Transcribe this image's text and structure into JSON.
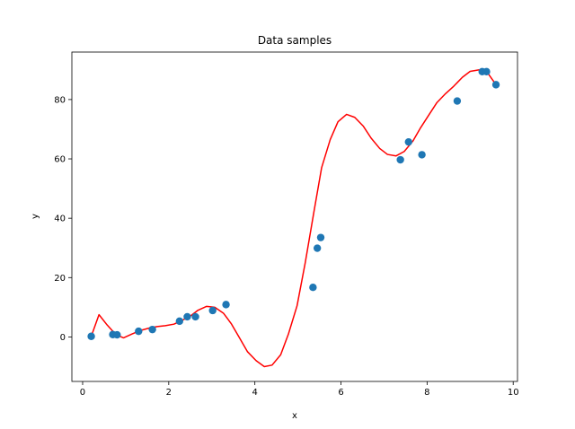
{
  "chart_data": {
    "type": "scatter",
    "title": "Data samples",
    "xlabel": "x",
    "ylabel": "y",
    "xlim": [
      -0.25,
      10.1
    ],
    "ylim": [
      -15,
      96
    ],
    "xticks": [
      0,
      2,
      4,
      6,
      8,
      10
    ],
    "yticks": [
      0,
      20,
      40,
      60,
      80
    ],
    "grid": false,
    "colors": {
      "points": "#1f77b4",
      "line": "#ff0000"
    },
    "series": [
      {
        "type": "scatter",
        "x": [
          0.2,
          0.7,
          0.8,
          1.3,
          1.62,
          2.25,
          2.43,
          2.62,
          3.02,
          3.33,
          5.35,
          5.45,
          5.53,
          7.38,
          7.57,
          7.88,
          8.7,
          9.28,
          9.38,
          9.6
        ],
        "y": [
          0.2,
          0.8,
          0.7,
          1.9,
          2.5,
          5.3,
          6.8,
          6.8,
          8.9,
          10.9,
          16.7,
          29.9,
          33.5,
          59.7,
          65.7,
          61.4,
          79.5,
          89.4,
          89.4,
          85.0
        ]
      },
      {
        "type": "line",
        "x": [
          0.2,
          0.38,
          0.57,
          0.77,
          0.95,
          1.15,
          1.35,
          1.55,
          1.73,
          1.92,
          2.12,
          2.3,
          2.5,
          2.68,
          2.88,
          3.07,
          3.27,
          3.45,
          3.65,
          3.83,
          4.03,
          4.22,
          4.4,
          4.6,
          4.78,
          4.98,
          5.17,
          5.37,
          5.55,
          5.75,
          5.93,
          6.13,
          6.32,
          6.52,
          6.7,
          6.9,
          7.08,
          7.28,
          7.47,
          7.67,
          7.85,
          8.05,
          8.23,
          8.43,
          8.62,
          8.82,
          9.0,
          9.2,
          9.38,
          9.6
        ],
        "y": [
          0.2,
          7.5,
          4.0,
          0.8,
          -0.3,
          1.0,
          2.2,
          3.0,
          3.5,
          3.8,
          4.3,
          5.5,
          7.0,
          9.0,
          10.3,
          10.0,
          8.0,
          4.5,
          -0.5,
          -5.0,
          -8.0,
          -10.0,
          -9.5,
          -6.0,
          1.0,
          10.5,
          25.0,
          42.0,
          57.0,
          66.5,
          72.5,
          75.0,
          74.0,
          71.0,
          67.0,
          63.5,
          61.5,
          61.0,
          62.5,
          66.0,
          70.5,
          75.0,
          79.0,
          82.0,
          84.5,
          87.5,
          89.5,
          90.0,
          89.5,
          85.0
        ]
      }
    ]
  }
}
